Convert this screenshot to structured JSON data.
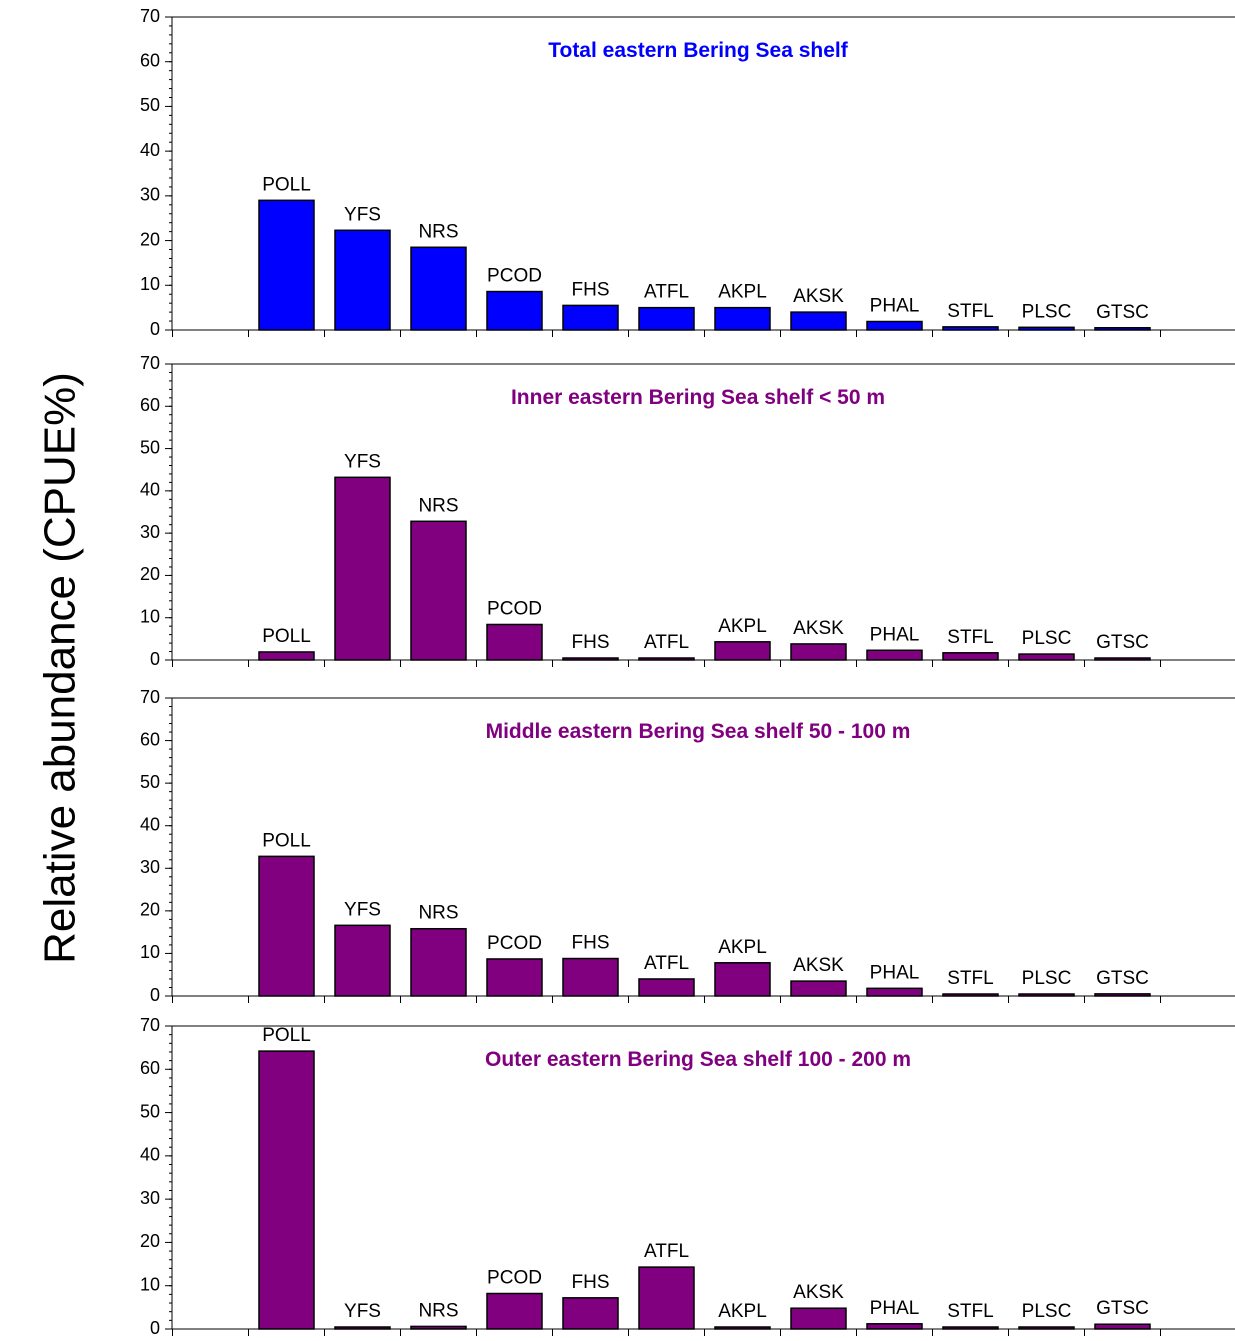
{
  "ylabel": "Relative abundance (CPUE%)",
  "chart_data": [
    {
      "type": "bar",
      "title": "Total eastern Bering Sea shelf",
      "title_color": "#0000ff",
      "bar_color": "#0000ff",
      "ylim": [
        0,
        70
      ],
      "yticks": [
        0,
        10,
        20,
        30,
        40,
        50,
        60,
        70
      ],
      "categories": [
        "POLL",
        "YFS",
        "NRS",
        "PCOD",
        "FHS",
        "ATFL",
        "AKPL",
        "AKSK",
        "PHAL",
        "STFL",
        "PLSC",
        "GTSC"
      ],
      "values": [
        29,
        22.3,
        18.5,
        8.6,
        5.5,
        5.0,
        5.0,
        4.0,
        1.9,
        0.7,
        0.6,
        0.5
      ]
    },
    {
      "type": "bar",
      "title": "Inner eastern Bering Sea shelf < 50 m",
      "title_color": "#800080",
      "bar_color": "#800080",
      "ylim": [
        0,
        70
      ],
      "yticks": [
        0,
        10,
        20,
        30,
        40,
        50,
        60,
        70
      ],
      "categories": [
        "POLL",
        "YFS",
        "NRS",
        "PCOD",
        "FHS",
        "ATFL",
        "AKPL",
        "AKSK",
        "PHAL",
        "STFL",
        "PLSC",
        "GTSC"
      ],
      "values": [
        1.9,
        43.2,
        32.8,
        8.4,
        0.3,
        0.3,
        4.3,
        3.8,
        2.3,
        1.7,
        1.4,
        0.4
      ]
    },
    {
      "type": "bar",
      "title": "Middle eastern Bering Sea shelf 50 - 100 m",
      "title_color": "#800080",
      "bar_color": "#800080",
      "ylim": [
        0,
        70
      ],
      "yticks": [
        0,
        10,
        20,
        30,
        40,
        50,
        60,
        70
      ],
      "categories": [
        "POLL",
        "YFS",
        "NRS",
        "PCOD",
        "FHS",
        "ATFL",
        "AKPL",
        "AKSK",
        "PHAL",
        "STFL",
        "PLSC",
        "GTSC"
      ],
      "values": [
        32.8,
        16.6,
        15.8,
        8.7,
        8.8,
        4.0,
        7.8,
        3.5,
        1.8,
        0.2,
        0.3,
        0.5
      ]
    },
    {
      "type": "bar",
      "title": "Outer eastern Bering Sea shelf 100 - 200 m",
      "title_color": "#800080",
      "bar_color": "#800080",
      "ylim": [
        0,
        70
      ],
      "yticks": [
        0,
        10,
        20,
        30,
        40,
        50,
        60,
        70
      ],
      "categories": [
        "POLL",
        "YFS",
        "NRS",
        "PCOD",
        "FHS",
        "ATFL",
        "AKPL",
        "AKSK",
        "PHAL",
        "STFL",
        "PLSC",
        "GTSC"
      ],
      "values": [
        64.2,
        0.3,
        0.6,
        8.2,
        7.2,
        14.3,
        0.3,
        4.8,
        1.2,
        0.1,
        0.3,
        1.1
      ]
    }
  ]
}
